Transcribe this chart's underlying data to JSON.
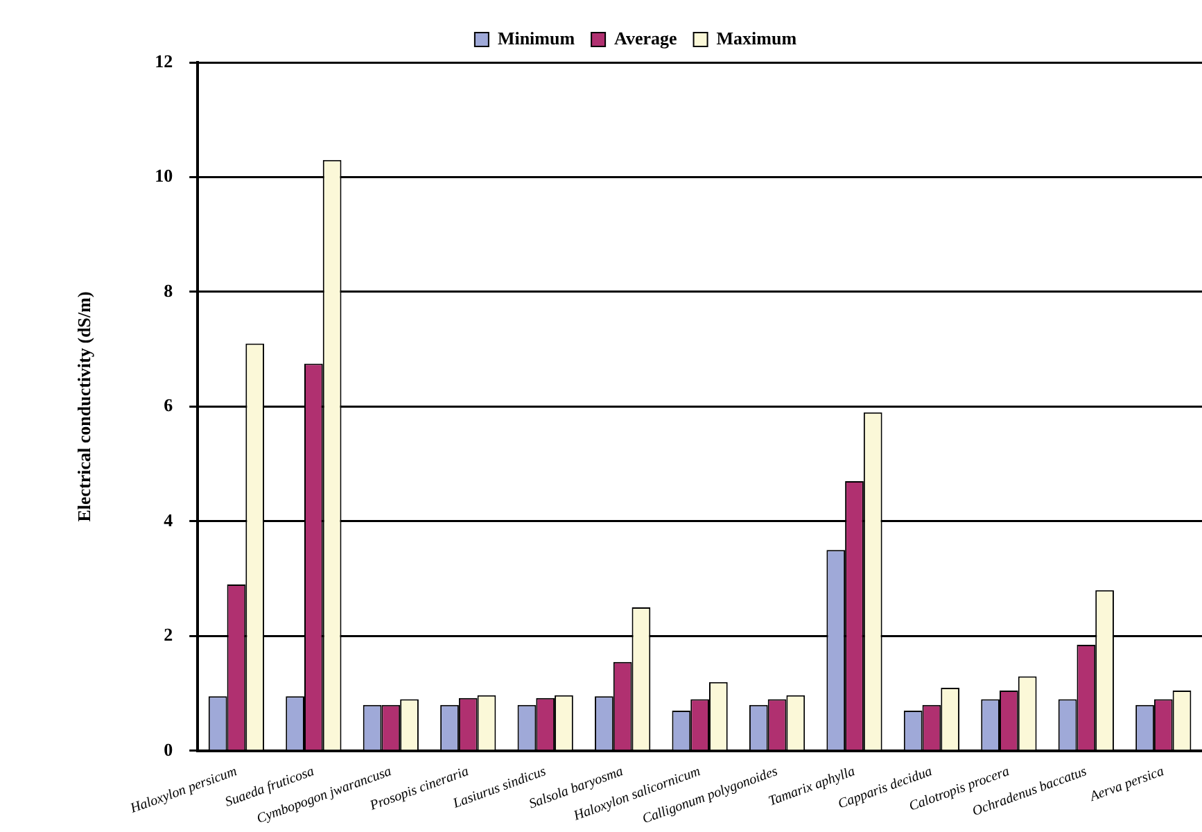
{
  "chart_data": {
    "type": "bar",
    "ylabel": "Electrical conductivity (dS/m)",
    "categories": [
      "Haloxylon persicum",
      "Suaeda fruticosa",
      "Cymbopogon jwarancusa",
      "Prosopis cineraria",
      "Lasiurus sindicus",
      "Salsola baryosma",
      "Haloxylon salicornicum",
      "Calligonum polygonoides",
      "Tamarix aphylla",
      "Capparis decidua",
      "Calotropis procera",
      "Ochradenus baccatus",
      "Aerva persica"
    ],
    "series": [
      {
        "name": "Minimum",
        "color": "#9fa9d8",
        "values": [
          0.95,
          0.95,
          0.8,
          0.8,
          0.8,
          0.95,
          0.7,
          0.8,
          3.5,
          0.7,
          0.9,
          0.9,
          0.8
        ]
      },
      {
        "name": "Average",
        "color": "#b03070",
        "values": [
          2.9,
          6.75,
          0.8,
          0.92,
          0.92,
          1.55,
          0.9,
          0.9,
          4.7,
          0.8,
          1.05,
          1.85,
          0.9
        ]
      },
      {
        "name": "Maximum",
        "color": "#fbf8d8",
        "values": [
          7.1,
          10.3,
          0.9,
          0.97,
          0.97,
          2.5,
          1.2,
          0.97,
          5.9,
          1.1,
          1.3,
          2.8,
          1.05
        ]
      }
    ],
    "ylim": [
      0,
      12
    ],
    "yticks": [
      0,
      2,
      4,
      6,
      8,
      10,
      12
    ],
    "grid": "y",
    "legend": "top"
  }
}
